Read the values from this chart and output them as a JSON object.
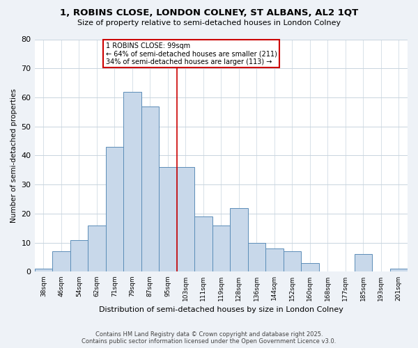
{
  "title": "1, ROBINS CLOSE, LONDON COLNEY, ST ALBANS, AL2 1QT",
  "subtitle": "Size of property relative to semi-detached houses in London Colney",
  "xlabel": "Distribution of semi-detached houses by size in London Colney",
  "ylabel": "Number of semi-detached properties",
  "footer_line1": "Contains HM Land Registry data © Crown copyright and database right 2025.",
  "footer_line2": "Contains public sector information licensed under the Open Government Licence v3.0.",
  "categories": [
    "38sqm",
    "46sqm",
    "54sqm",
    "62sqm",
    "71sqm",
    "79sqm",
    "87sqm",
    "95sqm",
    "103sqm",
    "111sqm",
    "119sqm",
    "128sqm",
    "136sqm",
    "144sqm",
    "152sqm",
    "160sqm",
    "168sqm",
    "177sqm",
    "185sqm",
    "193sqm",
    "201sqm"
  ],
  "values": [
    1,
    7,
    11,
    16,
    43,
    62,
    57,
    36,
    36,
    19,
    16,
    22,
    10,
    8,
    7,
    3,
    0,
    0,
    6,
    0,
    1
  ],
  "bar_color": "#c8d8ea",
  "bar_edge_color": "#5b8db8",
  "vline_x_index": 8,
  "vline_color": "#cc0000",
  "property_label": "1 ROBINS CLOSE: 99sqm",
  "annotation_line1": "← 64% of semi-detached houses are smaller (211)",
  "annotation_line2": "34% of semi-detached houses are larger (113) →",
  "annotation_box_color": "#ffffff",
  "annotation_box_edge": "#cc0000",
  "ylim": [
    0,
    80
  ],
  "yticks": [
    0,
    10,
    20,
    30,
    40,
    50,
    60,
    70,
    80
  ],
  "background_color": "#eef2f7",
  "plot_bg_color": "#ffffff",
  "grid_color": "#c8d4de"
}
